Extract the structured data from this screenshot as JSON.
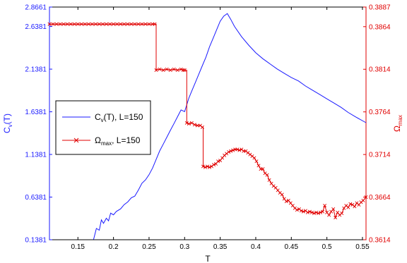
{
  "chart_data": {
    "type": "line",
    "xlabel": "T",
    "ylabel_left": {
      "main": "C",
      "sub": "v",
      "rest": "(T)"
    },
    "ylabel_right": {
      "main": "Ω",
      "sub": "max"
    },
    "xlim": [
      0.11,
      0.555
    ],
    "ylim_left": [
      0.1381,
      2.8661
    ],
    "ylim_right": [
      0.3614,
      0.3887
    ],
    "x_ticks": [
      "0.15",
      "0.2",
      "0.25",
      "0.3",
      "0.35",
      "0.4",
      "0.45",
      "0.5",
      "0.55"
    ],
    "x_tick_values": [
      0.15,
      0.2,
      0.25,
      0.3,
      0.35,
      0.4,
      0.45,
      0.5,
      0.55
    ],
    "y_left_ticks": [
      "0.1381",
      "0.6381",
      "1.1381",
      "1.6381",
      "2.1381",
      "2.6381",
      "2.8661"
    ],
    "y_left_tick_values": [
      0.1381,
      0.6381,
      1.1381,
      1.6381,
      2.1381,
      2.6381,
      2.8661
    ],
    "y_right_ticks": [
      "0.3614",
      "0.3664",
      "0.3714",
      "0.3764",
      "0.3814",
      "0.3864",
      "0.3887"
    ],
    "y_right_tick_values": [
      0.3614,
      0.3664,
      0.3714,
      0.3764,
      0.3814,
      0.3864,
      0.3887
    ],
    "grid": false,
    "legend_position": "left-middle",
    "colors": {
      "cv": "#1a1aff",
      "omega": "#e00000"
    },
    "series": [
      {
        "name": "C_v(T), L=150",
        "legend": {
          "main": "C",
          "sub": "v",
          "rest": "(T), L=150"
        },
        "axis": "left",
        "marker": "none",
        "x": [
          0.172,
          0.176,
          0.18,
          0.183,
          0.186,
          0.19,
          0.193,
          0.196,
          0.2,
          0.204,
          0.21,
          0.215,
          0.22,
          0.225,
          0.23,
          0.235,
          0.24,
          0.245,
          0.25,
          0.255,
          0.26,
          0.265,
          0.27,
          0.275,
          0.28,
          0.285,
          0.29,
          0.295,
          0.3,
          0.303,
          0.306,
          0.31,
          0.315,
          0.32,
          0.325,
          0.33,
          0.335,
          0.34,
          0.345,
          0.35,
          0.355,
          0.36,
          0.365,
          0.37,
          0.38,
          0.39,
          0.4,
          0.41,
          0.42,
          0.43,
          0.44,
          0.45,
          0.46,
          0.47,
          0.48,
          0.49,
          0.5,
          0.51,
          0.52,
          0.53,
          0.54,
          0.555
        ],
        "y": [
          0.14,
          0.27,
          0.25,
          0.37,
          0.33,
          0.39,
          0.36,
          0.45,
          0.43,
          0.47,
          0.5,
          0.55,
          0.58,
          0.63,
          0.65,
          0.72,
          0.8,
          0.84,
          0.9,
          0.98,
          1.08,
          1.18,
          1.26,
          1.34,
          1.42,
          1.5,
          1.58,
          1.66,
          1.64,
          1.72,
          1.8,
          1.88,
          1.98,
          2.08,
          2.18,
          2.28,
          2.4,
          2.5,
          2.6,
          2.7,
          2.76,
          2.79,
          2.72,
          2.64,
          2.52,
          2.42,
          2.33,
          2.26,
          2.2,
          2.14,
          2.09,
          2.04,
          2.0,
          1.94,
          1.89,
          1.84,
          1.79,
          1.74,
          1.69,
          1.63,
          1.58,
          1.51
        ]
      },
      {
        "name": "Ω_max, L=150",
        "legend": {
          "main": "Ω",
          "sub": "max",
          "rest": ", L=150"
        },
        "axis": "right",
        "marker": "x",
        "x": [
          0.11,
          0.115,
          0.12,
          0.125,
          0.13,
          0.135,
          0.14,
          0.145,
          0.15,
          0.155,
          0.16,
          0.165,
          0.17,
          0.175,
          0.18,
          0.185,
          0.19,
          0.195,
          0.2,
          0.205,
          0.21,
          0.215,
          0.22,
          0.225,
          0.23,
          0.235,
          0.24,
          0.245,
          0.25,
          0.255,
          0.258,
          0.26,
          0.265,
          0.27,
          0.275,
          0.28,
          0.285,
          0.29,
          0.295,
          0.298,
          0.3,
          0.303,
          0.306,
          0.31,
          0.314,
          0.318,
          0.322,
          0.325,
          0.326,
          0.329,
          0.332,
          0.335,
          0.338,
          0.341,
          0.344,
          0.347,
          0.35,
          0.353,
          0.356,
          0.359,
          0.362,
          0.365,
          0.368,
          0.371,
          0.374,
          0.377,
          0.38,
          0.383,
          0.386,
          0.389,
          0.392,
          0.395,
          0.398,
          0.401,
          0.404,
          0.407,
          0.41,
          0.413,
          0.416,
          0.419,
          0.422,
          0.425,
          0.428,
          0.431,
          0.434,
          0.437,
          0.44,
          0.443,
          0.446,
          0.449,
          0.452,
          0.455,
          0.458,
          0.461,
          0.464,
          0.467,
          0.47,
          0.473,
          0.476,
          0.479,
          0.482,
          0.485,
          0.488,
          0.491,
          0.494,
          0.497,
          0.5,
          0.503,
          0.506,
          0.509,
          0.512,
          0.515,
          0.518,
          0.521,
          0.524,
          0.527,
          0.53,
          0.533,
          0.536,
          0.539,
          0.542,
          0.545,
          0.548,
          0.551,
          0.555
        ],
        "y": [
          0.3867,
          0.3867,
          0.3867,
          0.3867,
          0.3867,
          0.3867,
          0.3867,
          0.3867,
          0.3867,
          0.3867,
          0.3867,
          0.3867,
          0.3867,
          0.3867,
          0.3867,
          0.3867,
          0.3867,
          0.3867,
          0.3867,
          0.3867,
          0.3867,
          0.3867,
          0.3867,
          0.3867,
          0.3867,
          0.3867,
          0.3867,
          0.3867,
          0.3867,
          0.3867,
          0.3867,
          0.3813,
          0.3814,
          0.3813,
          0.3814,
          0.3813,
          0.3814,
          0.3813,
          0.3814,
          0.3813,
          0.3813,
          0.3751,
          0.375,
          0.3751,
          0.3749,
          0.3748,
          0.3748,
          0.3746,
          0.37,
          0.3699,
          0.37,
          0.3699,
          0.37,
          0.3702,
          0.3703,
          0.3706,
          0.3707,
          0.371,
          0.3713,
          0.3715,
          0.3717,
          0.3718,
          0.3719,
          0.372,
          0.372,
          0.3719,
          0.372,
          0.3718,
          0.3718,
          0.3716,
          0.3714,
          0.3712,
          0.371,
          0.3706,
          0.3701,
          0.3697,
          0.3697,
          0.3692,
          0.369,
          0.3684,
          0.368,
          0.3677,
          0.3675,
          0.3672,
          0.3669,
          0.3667,
          0.3662,
          0.3659,
          0.366,
          0.3657,
          0.3654,
          0.3651,
          0.3649,
          0.365,
          0.3648,
          0.3647,
          0.3648,
          0.3646,
          0.3647,
          0.3646,
          0.3645,
          0.3646,
          0.3645,
          0.3646,
          0.3647,
          0.3654,
          0.3646,
          0.3643,
          0.3647,
          0.365,
          0.364,
          0.3646,
          0.3643,
          0.3645,
          0.3651,
          0.3654,
          0.3652,
          0.3656,
          0.3655,
          0.3653,
          0.3657,
          0.3655,
          0.3658,
          0.366,
          0.3664
        ]
      }
    ]
  }
}
